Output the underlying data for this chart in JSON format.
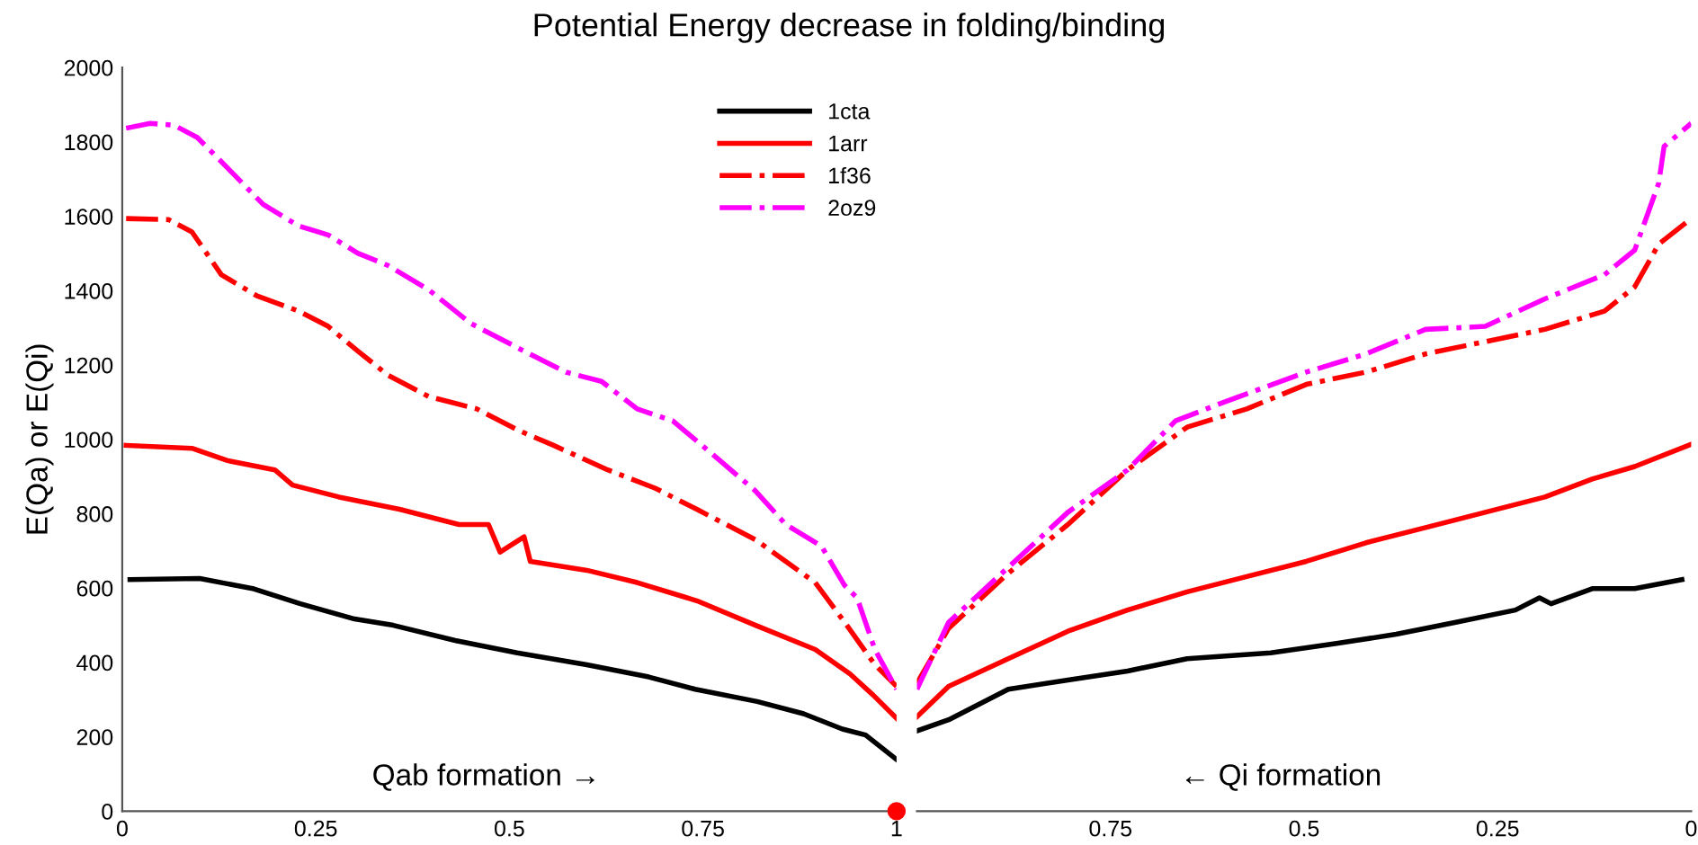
{
  "chart_data": [
    {
      "type": "line",
      "title": "Potential Energy decrease in folding/binding",
      "ylabel": "E(Qa) or E(Qi)",
      "annotations": [
        "Qab formation →"
      ],
      "xlim": [
        0,
        1
      ],
      "ylim": [
        0,
        2000
      ],
      "xticks": [
        0,
        0.25,
        0.5,
        0.75,
        1
      ],
      "yticks": [
        0,
        200,
        400,
        600,
        800,
        1000,
        1200,
        1400,
        1600,
        1800,
        2000
      ],
      "grid": false,
      "legend": "top right",
      "marker": "none",
      "series": [
        {
          "name": "1cta",
          "color": "#000000",
          "line_style": "solid",
          "x": [
            0.01,
            0.1,
            0.17,
            0.23,
            0.3,
            0.35,
            0.43,
            0.51,
            0.6,
            0.68,
            0.74,
            0.82,
            0.88,
            0.93,
            0.96,
            1.0
          ],
          "values": [
            623,
            626,
            598,
            558,
            517,
            500,
            459,
            426,
            394,
            361,
            328,
            295,
            262,
            221,
            205,
            139
          ]
        },
        {
          "name": "1arr",
          "color": "#ff0000",
          "line_style": "solid",
          "x": [
            0.005,
            0.09,
            0.136,
            0.197,
            0.22,
            0.28,
            0.358,
            0.435,
            0.473,
            0.488,
            0.519,
            0.527,
            0.6,
            0.665,
            0.742,
            0.818,
            0.895,
            0.94,
            0.97,
            1.0
          ],
          "values": [
            984,
            976,
            943,
            918,
            877,
            845,
            812,
            771,
            771,
            697,
            738,
            672,
            648,
            615,
            566,
            500,
            435,
            369,
            312,
            250
          ]
        },
        {
          "name": "1f36",
          "color": "#ff0000",
          "line_style": "dashdot",
          "x": [
            0.005,
            0.06,
            0.09,
            0.128,
            0.174,
            0.228,
            0.266,
            0.304,
            0.343,
            0.396,
            0.458,
            0.511,
            0.557,
            0.627,
            0.688,
            0.742,
            0.818,
            0.895,
            0.933,
            0.972,
            1.0
          ],
          "values": [
            1594,
            1591,
            1558,
            1443,
            1386,
            1345,
            1304,
            1238,
            1173,
            1115,
            1082,
            1025,
            984,
            918,
            869,
            812,
            730,
            615,
            508,
            394,
            336
          ]
        },
        {
          "name": "2oz9",
          "color": "#ff00ff",
          "line_style": "dashdot",
          "x": [
            0.005,
            0.036,
            0.067,
            0.097,
            0.136,
            0.182,
            0.228,
            0.266,
            0.304,
            0.343,
            0.396,
            0.45,
            0.511,
            0.573,
            0.619,
            0.665,
            0.711,
            0.772,
            0.818,
            0.857,
            0.903,
            0.933,
            0.949,
            0.972,
            1.0
          ],
          "values": [
            1837,
            1850,
            1845,
            1812,
            1730,
            1632,
            1574,
            1550,
            1501,
            1468,
            1402,
            1312,
            1246,
            1181,
            1156,
            1082,
            1050,
            943,
            861,
            771,
            713,
            607,
            574,
            435,
            328
          ]
        },
        {
          "type": "scatter",
          "color": "#ff0000",
          "marker": "circle",
          "x": [
            1
          ],
          "values": [
            0
          ]
        }
      ]
    },
    {
      "type": "line",
      "annotations": [
        "← Qi formation"
      ],
      "xlim": [
        1,
        0
      ],
      "ylim": [
        0,
        2000
      ],
      "xticks": [
        0.75,
        0.5,
        0.25,
        0
      ],
      "tick_labels": "x",
      "grid": false,
      "marker": "none",
      "series": [
        {
          "color": "#000000",
          "line_style": "solid",
          "x": [
            1.0,
            0.959,
            0.882,
            0.805,
            0.728,
            0.651,
            0.543,
            0.458,
            0.381,
            0.304,
            0.227,
            0.196,
            0.181,
            0.127,
            0.073,
            0.012
          ],
          "values": [
            216,
            246,
            328,
            353,
            377,
            410,
            426,
            451,
            476,
            508,
            541,
            574,
            558,
            599,
            599,
            623
          ]
        },
        {
          "color": "#ff0000",
          "line_style": "solid",
          "x": [
            1.0,
            0.959,
            0.882,
            0.805,
            0.728,
            0.651,
            0.574,
            0.497,
            0.42,
            0.343,
            0.266,
            0.189,
            0.127,
            0.073,
            0.0
          ],
          "values": [
            254,
            336,
            410,
            484,
            541,
            590,
            631,
            672,
            722,
            763,
            804,
            845,
            894,
            927,
            987
          ]
        },
        {
          "color": "#ff0000",
          "line_style": "dashdot",
          "x": [
            1.0,
            0.959,
            0.882,
            0.805,
            0.728,
            0.651,
            0.574,
            0.497,
            0.42,
            0.343,
            0.266,
            0.189,
            0.112,
            0.073,
            0.042,
            0.0
          ],
          "values": [
            344,
            492,
            640,
            771,
            918,
            1033,
            1082,
            1148,
            1181,
            1230,
            1263,
            1296,
            1345,
            1410,
            1525,
            1594
          ]
        },
        {
          "color": "#ff00ff",
          "line_style": "dashdot",
          "x": [
            1.0,
            0.959,
            0.882,
            0.805,
            0.728,
            0.666,
            0.605,
            0.497,
            0.42,
            0.343,
            0.266,
            0.189,
            0.112,
            0.073,
            0.042,
            0.035,
            0.0
          ],
          "values": [
            328,
            508,
            656,
            804,
            918,
            1050,
            1099,
            1181,
            1230,
            1296,
            1304,
            1378,
            1443,
            1509,
            1689,
            1788,
            1850
          ]
        }
      ]
    }
  ]
}
